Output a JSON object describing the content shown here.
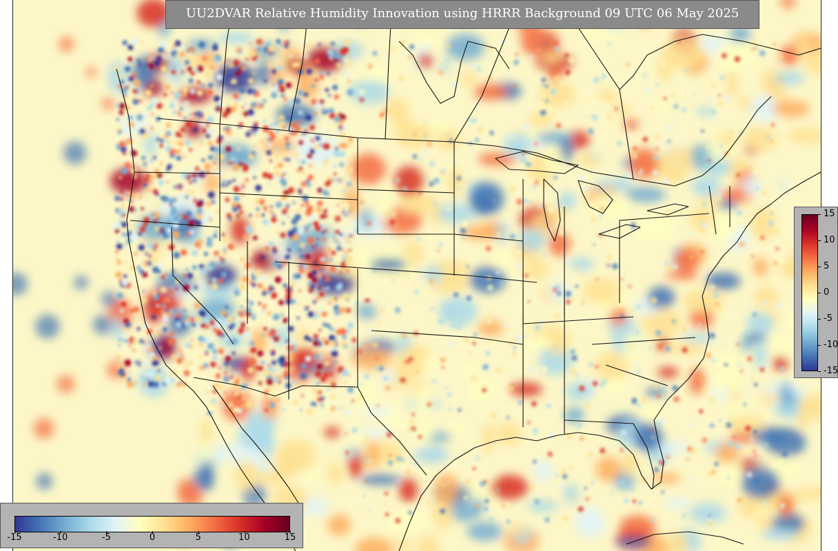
{
  "title": "UU2DVAR Relative Humidity Innovation using HRRR Background 09 UTC 06 May 2025",
  "colorbar": {
    "min": -15,
    "max": 15,
    "colors": [
      "#313695",
      "#4575b4",
      "#74add1",
      "#abd9e9",
      "#e0f3f8",
      "#ffffbf",
      "#fee090",
      "#fdae61",
      "#f46d43",
      "#d73027",
      "#a50026",
      "#67001f"
    ],
    "ticks": [
      "-15",
      "-10",
      "-5",
      "0",
      "5",
      "10",
      "15"
    ],
    "tick_values": [
      -15,
      -10,
      -5,
      0,
      5,
      10,
      15
    ]
  },
  "map": {
    "background_color": "#fdf7c8",
    "line_color": "#111111"
  }
}
